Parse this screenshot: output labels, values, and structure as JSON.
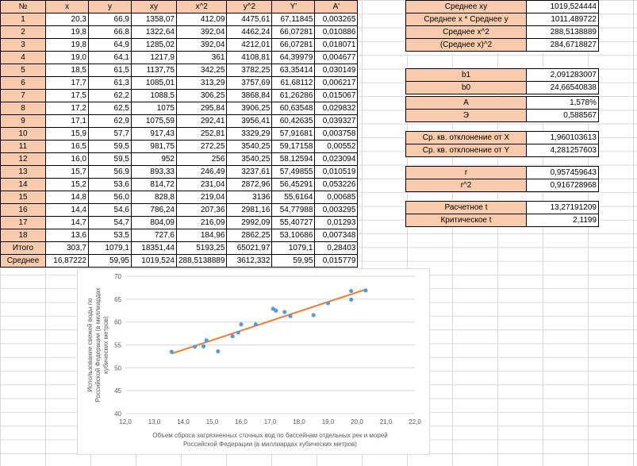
{
  "headers": [
    "№",
    "x",
    "y",
    "xy",
    "x^2",
    "y^2",
    "Y'",
    "A'"
  ],
  "rows": [
    [
      "1",
      "20,3",
      "66,9",
      "1358,07",
      "412,09",
      "4475,61",
      "67,11845",
      "0,003265"
    ],
    [
      "2",
      "19,8",
      "66,8",
      "1322,64",
      "392,04",
      "4462,24",
      "66,07281",
      "0,010886"
    ],
    [
      "3",
      "19,8",
      "64,9",
      "1285,02",
      "392,04",
      "4212,01",
      "66,07281",
      "0,018071"
    ],
    [
      "4",
      "19,0",
      "64,1",
      "1217,9",
      "361",
      "4108,81",
      "64,39979",
      "0,004677"
    ],
    [
      "5",
      "18,5",
      "61,5",
      "1137,75",
      "342,25",
      "3782,25",
      "63,35414",
      "0,030149"
    ],
    [
      "6",
      "17,7",
      "61,3",
      "1085,01",
      "313,29",
      "3757,69",
      "61,68112",
      "0,006217"
    ],
    [
      "7",
      "17,5",
      "62,2",
      "1088,5",
      "306,25",
      "3868,84",
      "61,26286",
      "0,015067"
    ],
    [
      "8",
      "17,2",
      "62,5",
      "1075",
      "295,84",
      "3906,25",
      "60,63548",
      "0,029832"
    ],
    [
      "9",
      "17,1",
      "62,9",
      "1075,59",
      "292,41",
      "3956,41",
      "60,42635",
      "0,039327"
    ],
    [
      "10",
      "15,9",
      "57,7",
      "917,43",
      "252,81",
      "3329,29",
      "57,91681",
      "0,003758"
    ],
    [
      "11",
      "16,5",
      "59,5",
      "981,75",
      "272,25",
      "3540,25",
      "59,17158",
      "0,00552"
    ],
    [
      "12",
      "16,0",
      "59,5",
      "952",
      "256",
      "3540,25",
      "58,12594",
      "0,023094"
    ],
    [
      "13",
      "15,7",
      "56,9",
      "893,33",
      "246,49",
      "3237,61",
      "57,49855",
      "0,010519"
    ],
    [
      "14",
      "15,2",
      "53,6",
      "814,72",
      "231,04",
      "2872,96",
      "56,45291",
      "0,053226"
    ],
    [
      "15",
      "14,8",
      "56,0",
      "828,8",
      "219,04",
      "3136",
      "55,6164",
      "0,00685"
    ],
    [
      "16",
      "14,4",
      "54,6",
      "786,24",
      "207,36",
      "2981,16",
      "54,77988",
      "0,003295"
    ],
    [
      "17",
      "14,7",
      "54,7",
      "804,09",
      "216,09",
      "2992,09",
      "55,40727",
      "0,01293"
    ],
    [
      "18",
      "13,6",
      "53,5",
      "727,6",
      "184,96",
      "2862,25",
      "53,10686",
      "0,007348"
    ],
    [
      "Итого",
      "303,7",
      "1079,1",
      "18351,44",
      "5193,25",
      "65021,97",
      "1079,1",
      "0,28403"
    ],
    [
      "Среднее",
      "16,87222",
      "59,95",
      "1019,524",
      "288,5138889",
      "3612,332",
      "59,95",
      "0,015779"
    ]
  ],
  "side": {
    "g1": [
      [
        "Среднее xy",
        "1019,524444"
      ],
      [
        "Среднее x * Среднее y",
        "1011,489722"
      ],
      [
        "Среднее x^2",
        "288,5138889"
      ],
      [
        "(Среднее x)^2",
        "284,6718827"
      ]
    ],
    "g2": [
      [
        "b1",
        "2,091283007"
      ],
      [
        "b0",
        "24,66540838"
      ]
    ],
    "g3": [
      [
        "A",
        "1,578%"
      ],
      [
        "Э",
        "0,588567"
      ]
    ],
    "g4": [
      [
        "Ср. кв. отклонение от X",
        "1,960103613"
      ],
      [
        "Ср. кв. отклонение от Y",
        "4,281257603"
      ]
    ],
    "g5": [
      [
        "r",
        "0,957459643"
      ],
      [
        "r^2",
        "0,916728968"
      ]
    ],
    "g6": [
      [
        "Расчетное t",
        "13,27191209"
      ],
      [
        "Критическое t",
        "2,1199"
      ]
    ]
  },
  "chart_data": {
    "type": "scatter",
    "xlabel": "Объем сброса загрязненных сточных вод по бассейнам отдельных рек и морей Российской Федерации (в миллиардах кубических метров)",
    "ylabel": "Использование свежей воды по Российской Федерации (в миллиардах кубических метров)",
    "xlim": [
      12,
      22
    ],
    "ylim": [
      40,
      70
    ],
    "x_ticks": [
      "12,0",
      "13,0",
      "14,0",
      "15,0",
      "16,0",
      "17,0",
      "18,0",
      "19,0",
      "20,0",
      "21,0",
      "22,0"
    ],
    "y_ticks": [
      "40",
      "45",
      "50",
      "55",
      "60",
      "65",
      "70"
    ],
    "points": [
      [
        20.3,
        66.9
      ],
      [
        19.8,
        66.8
      ],
      [
        19.8,
        64.9
      ],
      [
        19.0,
        64.1
      ],
      [
        18.5,
        61.5
      ],
      [
        17.7,
        61.3
      ],
      [
        17.5,
        62.2
      ],
      [
        17.2,
        62.5
      ],
      [
        17.1,
        62.9
      ],
      [
        15.9,
        57.7
      ],
      [
        16.5,
        59.5
      ],
      [
        16.0,
        59.5
      ],
      [
        15.7,
        56.9
      ],
      [
        15.2,
        53.6
      ],
      [
        14.8,
        56.0
      ],
      [
        14.4,
        54.6
      ],
      [
        14.7,
        54.7
      ],
      [
        13.6,
        53.5
      ]
    ],
    "trendline": {
      "b0": 24.66540838,
      "b1": 2.091283007,
      "x_from": 13.6,
      "x_to": 20.3
    },
    "colors": {
      "points": "#5b9bd5",
      "trend": "#ed7d31"
    }
  }
}
